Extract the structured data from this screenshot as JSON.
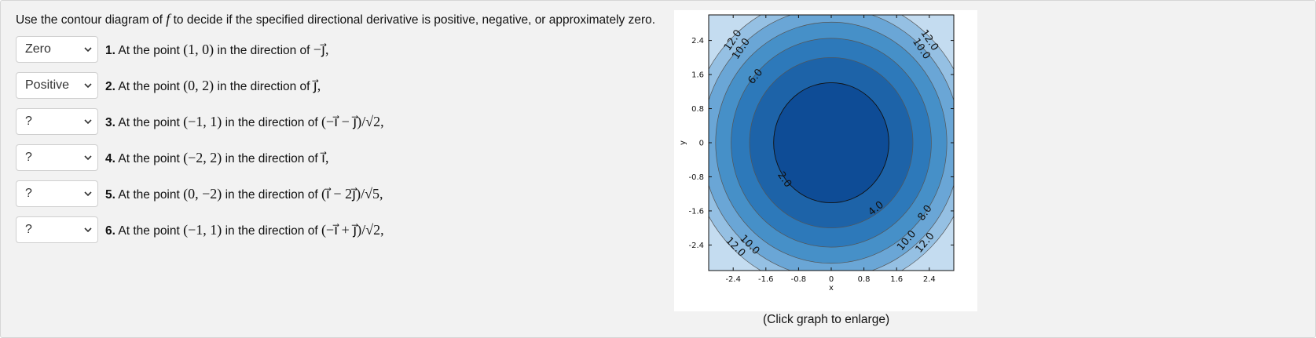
{
  "instructions": {
    "before": "Use the contour diagram of ",
    "f": "f",
    "after": " to decide if the specified directional derivative is positive, negative, or approximately zero."
  },
  "questions": [
    {
      "answer": "Zero",
      "number": "1.",
      "text": "At the point",
      "point": "(1, 0)",
      "dir_text": "in the direction of",
      "direction": "−j⃗,"
    },
    {
      "answer": "Positive",
      "number": "2.",
      "text": "At the point",
      "point": "(0, 2)",
      "dir_text": "in the direction of",
      "direction": "j⃗,"
    },
    {
      "answer": "?",
      "number": "3.",
      "text": "At the point",
      "point": "(−1, 1)",
      "dir_text": "in the direction of",
      "direction": "(−i⃗ − j⃗)/√2,"
    },
    {
      "answer": "?",
      "number": "4.",
      "text": "At the point",
      "point": "(−2, 2)",
      "dir_text": "in the direction of",
      "direction": "i⃗,"
    },
    {
      "answer": "?",
      "number": "5.",
      "text": "At the point",
      "point": "(0, −2)",
      "dir_text": "in the direction of",
      "direction": "(i⃗ − 2j⃗)/√5,"
    },
    {
      "answer": "?",
      "number": "6.",
      "text": "At the point",
      "point": "(−1, 1)",
      "dir_text": "in the direction of",
      "direction": "(−i⃗ + j⃗)/√2,"
    }
  ],
  "chart_data": {
    "type": "contour",
    "xlabel": "x",
    "ylabel": "y",
    "xlim": [
      -3,
      3
    ],
    "ylim": [
      -3,
      3
    ],
    "x_ticks": [
      "-2.4",
      "-1.6",
      "-0.8",
      "0",
      "0.8",
      "1.6",
      "2.4"
    ],
    "y_ticks": [
      "2.4",
      "1.6",
      "0.8",
      "0",
      "-0.8",
      "-1.6",
      "-2.4"
    ],
    "levels": [
      2,
      4,
      6,
      8,
      10,
      12
    ],
    "level_radii": [
      1.41,
      2.0,
      2.45,
      2.83,
      3.16,
      3.46
    ],
    "fill_colors": [
      "#0e4c96",
      "#1d63a8",
      "#2d79ba",
      "#4690c8",
      "#6aa6d6",
      "#95c0e3",
      "#c4dcf0"
    ],
    "contour_labels": [
      {
        "text": "12.0",
        "x": -2.4,
        "y": 2.4,
        "angle": -56
      },
      {
        "text": "10.0",
        "x": -2.2,
        "y": 2.2,
        "angle": -56
      },
      {
        "text": "6.0",
        "x": -1.85,
        "y": 1.55,
        "angle": -50
      },
      {
        "text": "12.0",
        "x": 2.4,
        "y": 2.4,
        "angle": 56
      },
      {
        "text": "10.0",
        "x": 2.2,
        "y": 2.2,
        "angle": 56
      },
      {
        "text": "2.0",
        "x": -1.15,
        "y": -0.87,
        "angle": 56
      },
      {
        "text": "4.0",
        "x": 1.1,
        "y": -1.55,
        "angle": -40
      },
      {
        "text": "8.0",
        "x": 2.3,
        "y": -1.65,
        "angle": -55
      },
      {
        "text": "10.0",
        "x": -2.0,
        "y": -2.4,
        "angle": 45
      },
      {
        "text": "12.0",
        "x": -2.35,
        "y": -2.45,
        "angle": 45
      },
      {
        "text": "10.0",
        "x": 1.85,
        "y": -2.3,
        "angle": -50
      },
      {
        "text": "12.0",
        "x": 2.3,
        "y": -2.35,
        "angle": -50
      }
    ]
  },
  "caption": "(Click graph to enlarge)"
}
